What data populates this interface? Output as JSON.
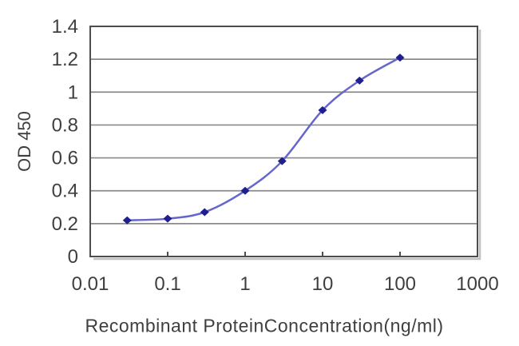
{
  "chart_data": {
    "type": "line",
    "x": [
      0.03,
      0.1,
      0.3,
      1,
      3,
      10,
      30,
      100
    ],
    "y": [
      0.22,
      0.23,
      0.27,
      0.4,
      0.58,
      0.89,
      1.07,
      1.21
    ],
    "title": "",
    "xlabel": "Recombinant ProteinConcentration(ng/ml)",
    "ylabel": "OD 450",
    "x_scale": "log",
    "xlim": [
      0.01,
      1000
    ],
    "ylim": [
      0,
      1.4
    ],
    "x_tick_labels": [
      "0.01",
      "0.1",
      "1",
      "10",
      "100",
      "1000"
    ],
    "x_tick_values": [
      0.01,
      0.1,
      1,
      10,
      100,
      1000
    ],
    "y_tick_labels": [
      "0",
      "0.2",
      "0.4",
      "0.6",
      "0.8",
      "1",
      "1.2",
      "1.4"
    ],
    "y_tick_values": [
      0,
      0.2,
      0.4,
      0.6,
      0.8,
      1,
      1.2,
      1.4
    ],
    "grid": "horizontal",
    "legend": "none",
    "line_color": "#6666cc",
    "marker": "diamond",
    "marker_color": "#1f1f8f",
    "gridline_color": "#8a8a8a",
    "border_color": "#4d4d4d",
    "shadow_color": "#bfbfbf",
    "tick_text_color": "#3f3f3f",
    "background_color": "#ffffff"
  }
}
